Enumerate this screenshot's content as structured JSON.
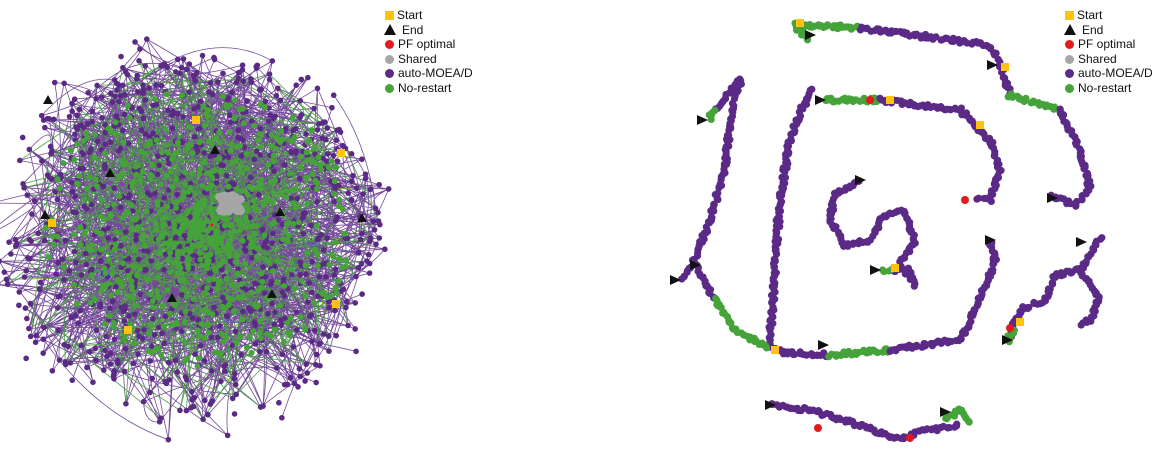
{
  "legend": {
    "start": "Start",
    "end": "End",
    "pf_optimal": "PF optimal",
    "shared": "Shared",
    "auto_moead": "auto-MOEA/D",
    "no_restart": "No-restart"
  },
  "colors": {
    "start": "#ffc20e",
    "end": "#111111",
    "pf_optimal": "#e31a1c",
    "shared": "#a6a6a6",
    "auto_moead": "#5b2a86",
    "no_restart": "#45a33a"
  }
}
